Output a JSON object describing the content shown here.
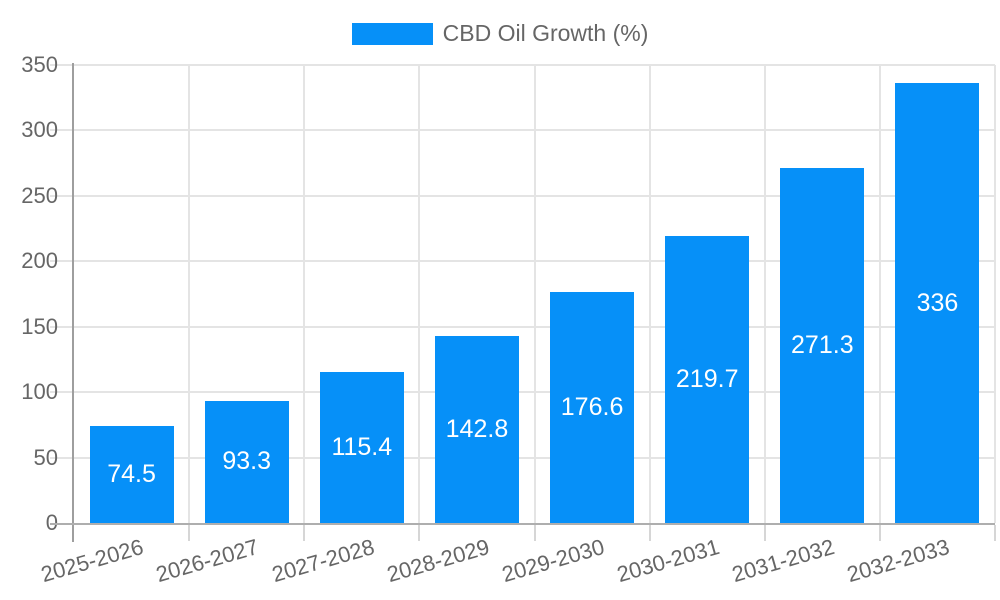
{
  "legend": {
    "label": "CBD Oil Growth (%)"
  },
  "colors": {
    "bar": "#0690f8",
    "bar_label": "#ffffff",
    "grid": "#e4e4e4",
    "tick": "#d6d6d6",
    "axis_y": "#9e9e9e",
    "axis_x": "#aeaeae",
    "text": "#666666",
    "background": "#ffffff"
  },
  "chart_data": {
    "type": "bar",
    "title": "",
    "xlabel": "",
    "ylabel": "",
    "categories": [
      "2025-2026",
      "2026-2027",
      "2027-2028",
      "2028-2029",
      "2029-2030",
      "2030-2031",
      "2031-2032",
      "2032-2033"
    ],
    "series": [
      {
        "name": "CBD Oil Growth (%)",
        "values": [
          74.5,
          93.3,
          115.4,
          142.8,
          176.6,
          219.7,
          271.3,
          336
        ],
        "data_labels": [
          "74.5",
          "93.3",
          "115.4",
          "142.8",
          "176.6",
          "219.7",
          "271.3",
          "336"
        ]
      }
    ],
    "ylim": [
      0,
      350
    ],
    "yticks": [
      0,
      50,
      100,
      150,
      200,
      250,
      300,
      350
    ],
    "grid": true,
    "legend_position": "top",
    "data_label_position": "inside-center"
  }
}
